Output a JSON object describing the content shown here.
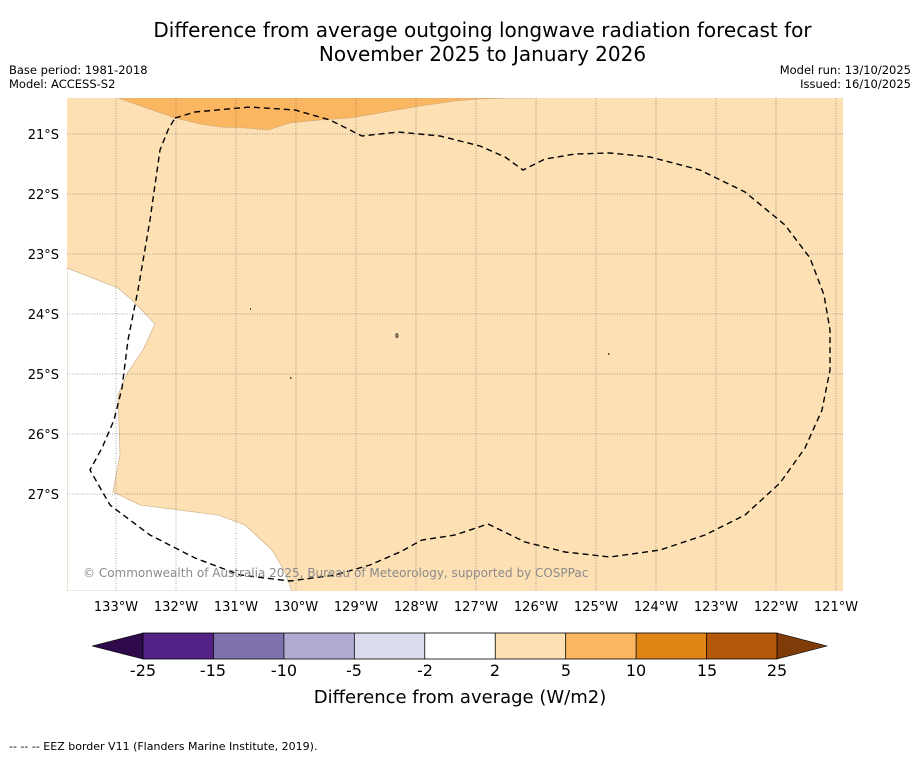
{
  "header": {
    "title_line1": "Difference from average outgoing longwave radiation forecast for",
    "title_line2": "November 2025 to January 2026",
    "base_period": "Base period: 1981-2018",
    "model": "Model: ACCESS-S2",
    "model_run": "Model run: 13/10/2025",
    "issued": "Issued: 16/10/2025"
  },
  "map": {
    "lat_labels": [
      "21°S",
      "22°S",
      "23°S",
      "24°S",
      "25°S",
      "26°S",
      "27°S"
    ],
    "lon_labels": [
      "133°W",
      "132°W",
      "131°W",
      "130°W",
      "129°W",
      "128°W",
      "127°W",
      "126°W",
      "125°W",
      "124°W",
      "123°W",
      "122°W",
      "121°W"
    ],
    "copyright": "© Commonwealth of Australia 2025, Bureau of Meteorology, supported by COSPPac"
  },
  "colorbar": {
    "tick_labels": [
      "-25",
      "-15",
      "-10",
      "-5",
      "-2",
      "2",
      "5",
      "10",
      "15",
      "25"
    ],
    "colors": [
      "#522186",
      "#7f71ad",
      "#b1aad3",
      "#dadbec",
      "#ffffff",
      "#fde0b4",
      "#fbb661",
      "#e08415",
      "#b35809"
    ],
    "under_color": "#2e0a4a",
    "over_color": "#7f3b08",
    "title": "Difference from average (W/m2)"
  },
  "footer": {
    "legend_text": "--  --  -- EEZ border V11 (Flanders Marine Institute, 2019)."
  }
}
